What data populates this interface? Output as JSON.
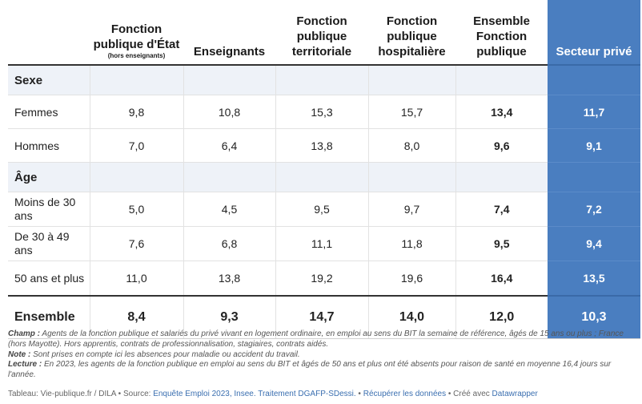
{
  "table": {
    "headers": [
      {
        "label": "Fonction publique d'État",
        "sub": "(hors enseignants)"
      },
      {
        "label": "Enseignants"
      },
      {
        "label": "Fonction publique territoriale"
      },
      {
        "label": "Fonction publique hospitalière"
      },
      {
        "label": "Ensemble Fonction publique"
      },
      {
        "label": "Secteur privé"
      }
    ],
    "sections": {
      "sexe": "Sexe",
      "age": "Âge"
    },
    "rows": [
      {
        "label": "Femmes",
        "values": [
          "9,8",
          "10,8",
          "15,3",
          "15,7",
          "13,4",
          "11,7"
        ]
      },
      {
        "label": "Hommes",
        "values": [
          "7,0",
          "6,4",
          "13,8",
          "8,0",
          "9,6",
          "9,1"
        ]
      },
      {
        "label": "Moins de 30 ans",
        "values": [
          "5,0",
          "4,5",
          "9,5",
          "9,7",
          "7,4",
          "7,2"
        ]
      },
      {
        "label": "De 30 à 49 ans",
        "values": [
          "7,6",
          "6,8",
          "11,1",
          "11,8",
          "9,5",
          "9,4"
        ]
      },
      {
        "label": "50 ans et plus",
        "values": [
          "11,0",
          "13,8",
          "19,2",
          "19,6",
          "16,4",
          "13,5"
        ]
      }
    ],
    "total": {
      "label": "Ensemble",
      "values": [
        "8,4",
        "9,3",
        "14,7",
        "14,0",
        "12,0",
        "10,3"
      ]
    }
  },
  "notes": {
    "champ_label": "Champ :",
    "champ_text": " Agents de la fonction publique et salariés du privé vivant en logement ordinaire, en emploi au sens du BIT la semaine de référence, âgés de 15 ans ou plus ; France (hors Mayotte). Hors apprentis, contrats de professionnalisation, stagiaires, contrats aidés.",
    "note_label": "Note :",
    "note_text": " Sont prises en compte ici les absences pour maladie ou accident du travail.",
    "lecture_label": "Lecture :",
    "lecture_text": " En 2023, les agents de la fonction publique en emploi au sens du BIT et âgés de 50 ans et plus ont été absents pour raison de santé en moyenne 16,4 jours sur l'année."
  },
  "credit": {
    "prefix": "Tableau: Vie-publique.fr / DILA • Source: ",
    "source_link": "Enquête Emploi 2023, Insee. Traitement DGAFP-SDessi.",
    "sep1": " • ",
    "download_link": "Récupérer les données",
    "sep2": " • Créé avec ",
    "tool_link": "Datawrapper"
  },
  "colors": {
    "accent": "#4a7ec0",
    "link": "#3b6fb0"
  }
}
